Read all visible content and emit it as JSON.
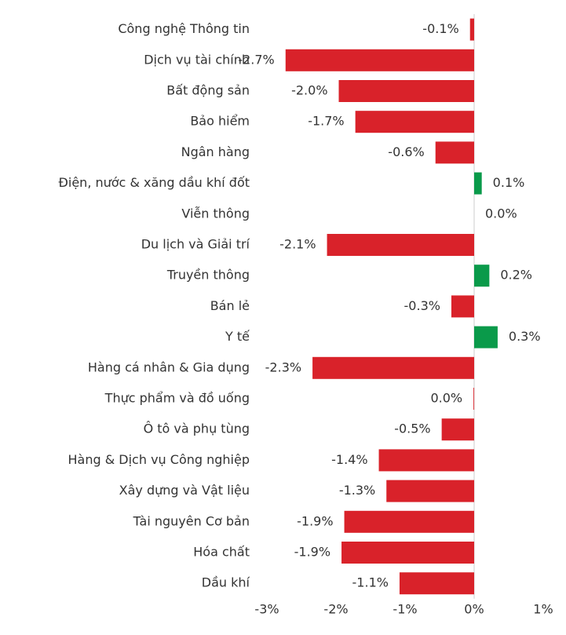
{
  "chart_data": {
    "type": "barh",
    "categories": [
      "Công nghệ Thông tin",
      "Dịch vụ tài chính",
      "Bất động sản",
      "Bảo hiểm",
      "Ngân hàng",
      "Điện, nước & xăng dầu khí đốt",
      "Viễn thông",
      "Du lịch và Giải trí",
      "Truyền thông",
      "Bán lẻ",
      "Y tế",
      "Hàng cá nhân & Gia dụng",
      "Thực phẩm và đồ uống",
      "Ô tô và phụ tùng",
      "Hàng & Dịch vụ Công nghiệp",
      "Xây dựng và Vật liệu",
      "Tài nguyên Cơ bản",
      "Hóa chất",
      "Dầu khí"
    ],
    "values": [
      -0.06,
      -2.73,
      -1.96,
      -1.72,
      -0.56,
      0.11,
      0,
      -2.13,
      0.22,
      -0.33,
      0.34,
      -2.34,
      -0.01,
      -0.47,
      -1.38,
      -1.27,
      -1.88,
      -1.92,
      -1.08
    ],
    "value_labels": [
      "-0.1%",
      "-2.7%",
      "-2.0%",
      "-1.7%",
      "-0.6%",
      "0.1%",
      "0.0%",
      "-2.1%",
      "0.2%",
      "-0.3%",
      "0.3%",
      "-2.3%",
      "0.0%",
      "-0.5%",
      "-1.4%",
      "-1.3%",
      "-1.9%",
      "-1.9%",
      "-1.1%"
    ],
    "positive_color": "#0a9a4a",
    "negative_color": "#d9222a",
    "xlim": [
      -3,
      1
    ],
    "xticks": [
      {
        "value": -3,
        "label": "-3%"
      },
      {
        "value": -2,
        "label": "-2%"
      },
      {
        "value": -1,
        "label": "-1%"
      },
      {
        "value": 0,
        "label": "0%"
      },
      {
        "value": 1,
        "label": "1%"
      }
    ],
    "grid": false
  }
}
